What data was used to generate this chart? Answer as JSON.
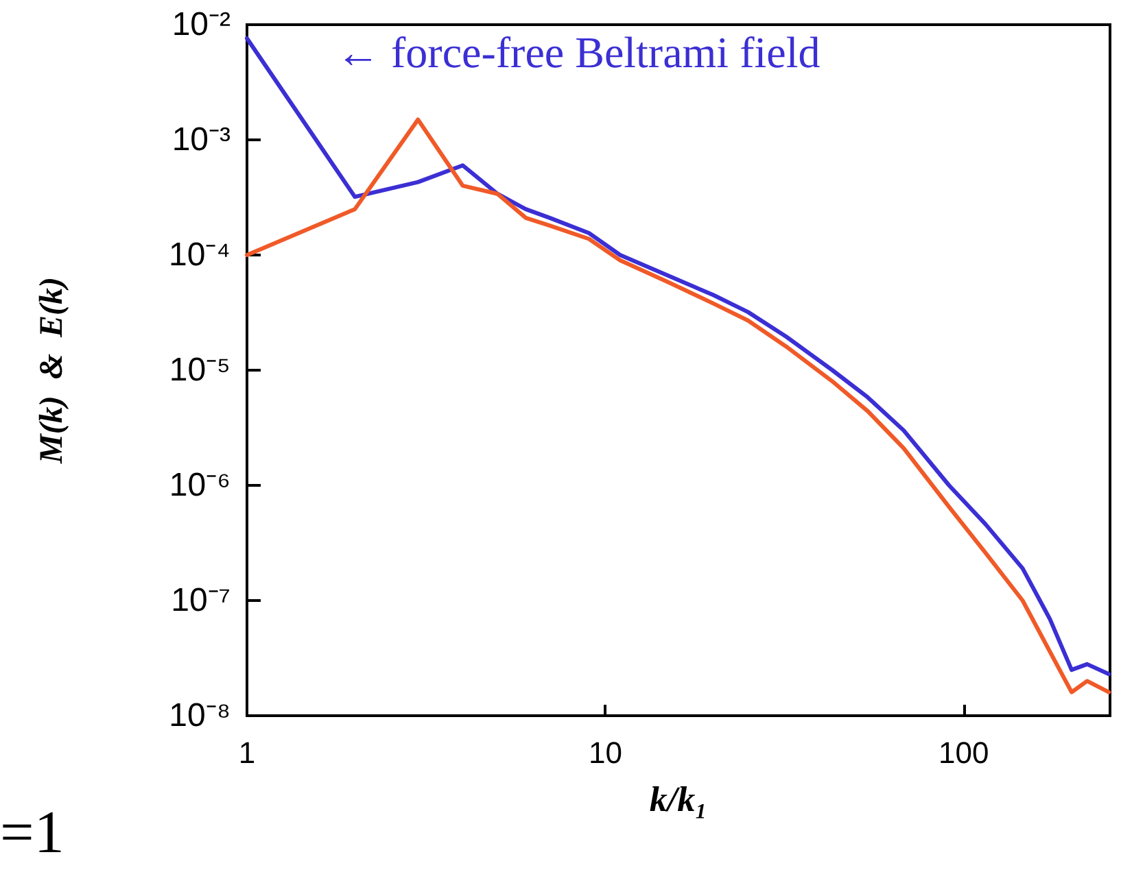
{
  "chart_data": {
    "type": "line",
    "xlabel": "k/k₁",
    "ylabel": "M(k)  &  E(k)",
    "log": "xy",
    "annotations": [
      "← force-free Beltrami field",
      "=1"
    ],
    "xlim": [
      1,
      256
    ],
    "xticks": [
      1,
      10,
      100
    ],
    "ylim": [
      1e-08,
      0.01
    ],
    "yticks": [
      {
        "value": 1e-08,
        "label": "10⁻⁸"
      },
      {
        "value": 1e-07,
        "label": "10⁻⁷"
      },
      {
        "value": 1e-06,
        "label": "10⁻⁶"
      },
      {
        "value": 1e-05,
        "label": "10⁻⁵"
      },
      {
        "value": 0.0001,
        "label": "10⁻⁴"
      },
      {
        "value": 0.001,
        "label": "10⁻³"
      },
      {
        "value": 0.01,
        "label": "10⁻²"
      }
    ],
    "grid": false,
    "marker": "none",
    "line_style": "solid",
    "series": [
      {
        "color": "#3b2fd4",
        "x": [
          1,
          2,
          3,
          4,
          5,
          6,
          7,
          9,
          11,
          15,
          20,
          25,
          32,
          43,
          54,
          68,
          91,
          115,
          146,
          174,
          200,
          221,
          254
        ],
        "values": [
          0.0076,
          0.00032,
          0.00043,
          0.0006,
          0.00034,
          0.00025,
          0.00021,
          0.000155,
          0.0001,
          6.6e-05,
          4.5e-05,
          3.2e-05,
          1.95e-05,
          1e-05,
          5.8e-06,
          3e-06,
          1e-06,
          4.6e-07,
          1.9e-07,
          6.9e-08,
          2.5e-08,
          2.8e-08,
          2.3e-08
        ]
      },
      {
        "color": "#f05a28",
        "x": [
          1,
          2,
          3,
          4,
          5,
          6,
          7,
          9,
          11,
          15,
          20,
          25,
          32,
          43,
          54,
          68,
          91,
          115,
          146,
          174,
          200,
          221,
          254
        ],
        "values": [
          0.0001,
          0.00025,
          0.0015,
          0.0004,
          0.00034,
          0.00021,
          0.00018,
          0.000138,
          9e-05,
          5.8e-05,
          3.8e-05,
          2.7e-05,
          1.6e-05,
          8e-06,
          4.4e-06,
          2.1e-06,
          6.5e-07,
          2.6e-07,
          1e-07,
          3.6e-08,
          1.6e-08,
          2e-08,
          1.6e-08
        ]
      }
    ]
  }
}
